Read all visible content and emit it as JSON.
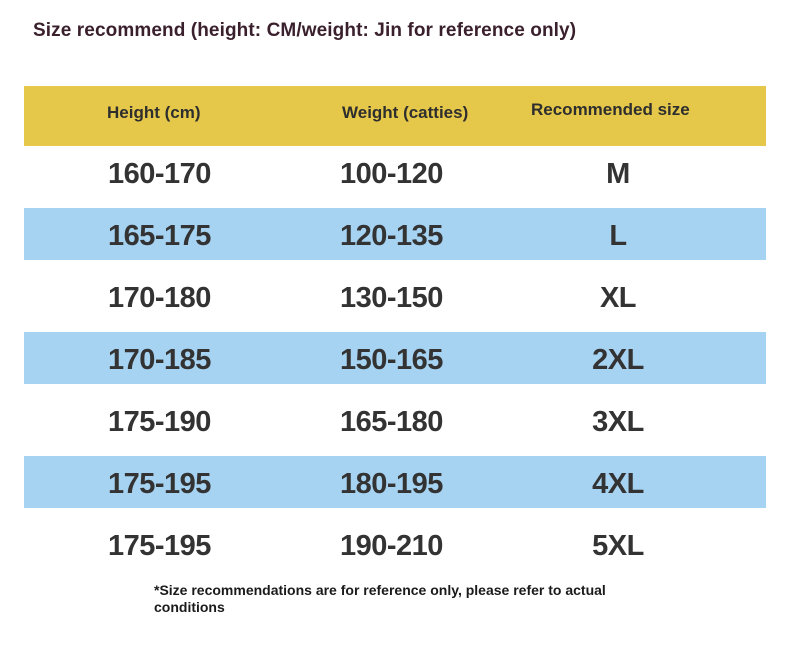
{
  "title": "Size recommend (height: CM/weight: Jin for reference only)",
  "table": {
    "headers": {
      "height": "Height (cm)",
      "weight": "Weight (catties)",
      "size": "Recommended size"
    },
    "rows": [
      {
        "height": "160-170",
        "weight": "100-120",
        "size": "M"
      },
      {
        "height": "165-175",
        "weight": "120-135",
        "size": "L"
      },
      {
        "height": "170-180",
        "weight": "130-150",
        "size": "XL"
      },
      {
        "height": "170-185",
        "weight": "150-165",
        "size": "2XL"
      },
      {
        "height": "175-190",
        "weight": "165-180",
        "size": "3XL"
      },
      {
        "height": "175-195",
        "weight": "180-195",
        "size": "4XL"
      },
      {
        "height": "175-195",
        "weight": "190-210",
        "size": "5XL"
      }
    ]
  },
  "footnote": "*Size recommendations are for reference only, please refer to actual conditions",
  "colors": {
    "header_bg": "#e5c84a",
    "stripe_bg": "#a6d3f2",
    "title_color": "#3a1f2c"
  }
}
